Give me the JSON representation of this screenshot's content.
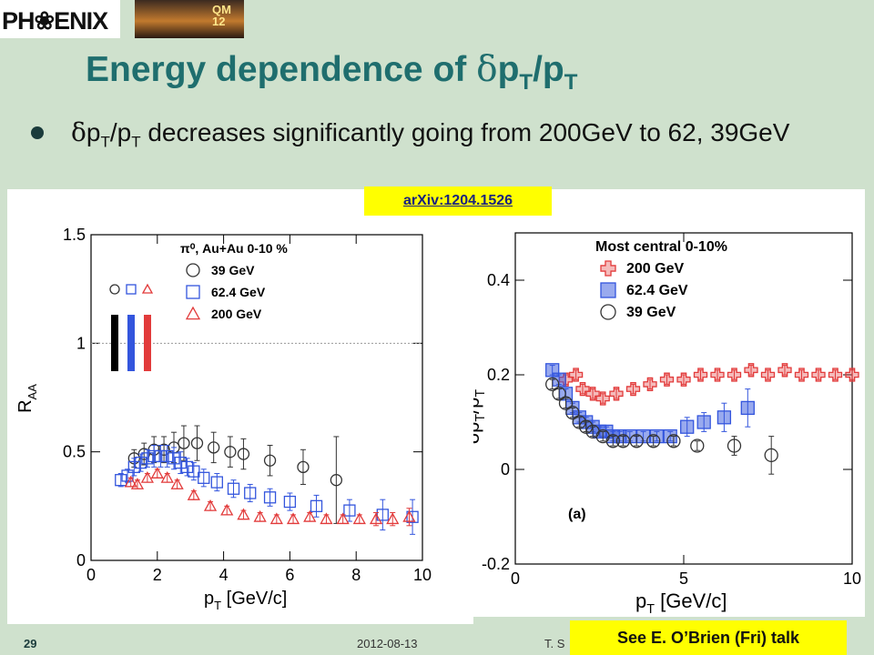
{
  "header": {
    "logo_text": "PH❀ENIX",
    "conference_badge": [
      "QM",
      "12"
    ]
  },
  "slide": {
    "title_pre": "Energy dependence of ",
    "title_delta": "δ",
    "title_p": "p",
    "title_sub1": "T",
    "title_slash": "/p",
    "title_sub2": "T",
    "bullet_delta": "δ",
    "bullet_p": "p",
    "bullet_sub1": "T",
    "bullet_slash": "/p",
    "bullet_sub2": "T",
    "bullet_rest": " decreases significantly going from 200GeV to 62, 39GeV"
  },
  "arxiv_label": "arXiv:1204.1526",
  "talk_label": "See E. O’Brien (Fri) talk",
  "footer": {
    "page": "29",
    "date": "2012-08-13",
    "author": "T. S"
  },
  "colors": {
    "c39": "#333333",
    "c62": "#3355dd",
    "c200": "#e23b3b",
    "ref_line": "#999999"
  },
  "chart_data": [
    {
      "type": "scatter",
      "ylabel": "R",
      "ylabel_sub": "AA",
      "xlabel": "p",
      "xlabel_sub": "T",
      "xlabel_rest": " [GeV/c]",
      "xlim": [
        0,
        10
      ],
      "ylim": [
        0,
        1.5
      ],
      "xticks": [
        "0",
        "2",
        "4",
        "6",
        "8",
        "10"
      ],
      "yticks": [
        "0",
        "0.5",
        "1",
        "1.5"
      ],
      "legend_title": "π⁰, Au+Au 0-10 %",
      "reference_line": 1.0,
      "series": [
        {
          "name": "39 GeV",
          "marker": "circle",
          "color": "#333333",
          "x": [
            1.3,
            1.6,
            1.9,
            2.2,
            2.5,
            2.8,
            3.2,
            3.7,
            4.2,
            4.6,
            5.4,
            6.4,
            7.4
          ],
          "y": [
            0.47,
            0.49,
            0.51,
            0.51,
            0.52,
            0.54,
            0.54,
            0.52,
            0.5,
            0.49,
            0.46,
            0.43,
            0.37
          ],
          "err": [
            0.04,
            0.05,
            0.06,
            0.06,
            0.07,
            0.08,
            0.08,
            0.07,
            0.07,
            0.07,
            0.07,
            0.08,
            0.2
          ]
        },
        {
          "name": "62.4 GeV",
          "marker": "square",
          "color": "#3355dd",
          "x": [
            0.9,
            1.1,
            1.3,
            1.5,
            1.7,
            1.9,
            2.1,
            2.3,
            2.5,
            2.7,
            2.9,
            3.1,
            3.4,
            3.8,
            4.3,
            4.8,
            5.4,
            6.0,
            6.8,
            7.8,
            8.8,
            9.7
          ],
          "y": [
            0.37,
            0.39,
            0.43,
            0.45,
            0.47,
            0.48,
            0.48,
            0.48,
            0.47,
            0.45,
            0.43,
            0.41,
            0.38,
            0.36,
            0.33,
            0.31,
            0.29,
            0.27,
            0.25,
            0.23,
            0.21,
            0.2
          ],
          "err": [
            0.03,
            0.03,
            0.04,
            0.04,
            0.04,
            0.05,
            0.05,
            0.05,
            0.05,
            0.05,
            0.04,
            0.04,
            0.04,
            0.04,
            0.04,
            0.04,
            0.04,
            0.04,
            0.05,
            0.05,
            0.07,
            0.08
          ]
        },
        {
          "name": "200 GeV",
          "marker": "triangle",
          "color": "#e23b3b",
          "x": [
            1.2,
            1.4,
            1.7,
            2.0,
            2.3,
            2.6,
            3.1,
            3.6,
            4.1,
            4.6,
            5.1,
            5.6,
            6.1,
            6.6,
            7.1,
            7.6,
            8.1,
            8.6,
            9.1,
            9.6
          ],
          "y": [
            0.36,
            0.35,
            0.38,
            0.4,
            0.38,
            0.35,
            0.3,
            0.25,
            0.23,
            0.21,
            0.2,
            0.19,
            0.19,
            0.2,
            0.19,
            0.19,
            0.19,
            0.19,
            0.19,
            0.2
          ],
          "err": [
            0.02,
            0.02,
            0.02,
            0.02,
            0.02,
            0.02,
            0.02,
            0.02,
            0.02,
            0.02,
            0.02,
            0.02,
            0.02,
            0.02,
            0.02,
            0.02,
            0.02,
            0.03,
            0.03,
            0.04
          ]
        }
      ]
    },
    {
      "type": "scatter",
      "ylabel": "δp",
      "ylabel_sub1": "T",
      "ylabel_mid": "/p",
      "ylabel_sub2": "T",
      "xlabel": "p",
      "xlabel_sub": "T",
      "xlabel_rest": " [GeV/c]",
      "xlim": [
        0,
        10
      ],
      "ylim": [
        -0.2,
        0.5
      ],
      "xticks": [
        "0",
        "5",
        "10"
      ],
      "yticks": [
        "-0.2",
        "0",
        "0.2",
        "0.4"
      ],
      "legend_title": "Most central 0-10%",
      "annotation": "(a)",
      "series": [
        {
          "name": "200 GeV",
          "marker": "cross",
          "color": "#e23b3b",
          "x": [
            1.5,
            1.8,
            2.0,
            2.3,
            2.6,
            3.0,
            3.5,
            4.0,
            4.5,
            5.0,
            5.5,
            6.0,
            6.5,
            7.0,
            7.5,
            8.0,
            8.5,
            9.0,
            9.5,
            10.0
          ],
          "y": [
            0.19,
            0.2,
            0.17,
            0.16,
            0.15,
            0.16,
            0.17,
            0.18,
            0.19,
            0.19,
            0.2,
            0.2,
            0.2,
            0.21,
            0.2,
            0.21,
            0.2,
            0.2,
            0.2,
            0.2
          ],
          "err": [
            0.01,
            0.01,
            0.01,
            0.01,
            0.01,
            0.01,
            0.01,
            0.01,
            0.01,
            0.01,
            0.01,
            0.01,
            0.01,
            0.01,
            0.01,
            0.01,
            0.01,
            0.01,
            0.01,
            0.01
          ]
        },
        {
          "name": "62.4 GeV",
          "marker": "square",
          "color": "#3355dd",
          "x": [
            1.1,
            1.3,
            1.5,
            1.7,
            1.9,
            2.1,
            2.3,
            2.5,
            2.7,
            2.9,
            3.1,
            3.4,
            3.8,
            4.2,
            4.6,
            5.1,
            5.6,
            6.2,
            6.9
          ],
          "y": [
            0.21,
            0.19,
            0.16,
            0.13,
            0.11,
            0.1,
            0.09,
            0.08,
            0.08,
            0.07,
            0.07,
            0.07,
            0.07,
            0.07,
            0.07,
            0.09,
            0.1,
            0.11,
            0.13
          ],
          "err": [
            0.01,
            0.01,
            0.01,
            0.01,
            0.01,
            0.01,
            0.01,
            0.01,
            0.01,
            0.01,
            0.01,
            0.01,
            0.01,
            0.01,
            0.01,
            0.02,
            0.02,
            0.03,
            0.04
          ]
        },
        {
          "name": "39 GeV",
          "marker": "circle",
          "color": "#333333",
          "x": [
            1.1,
            1.3,
            1.5,
            1.7,
            1.9,
            2.1,
            2.3,
            2.6,
            2.9,
            3.2,
            3.6,
            4.1,
            4.7,
            5.4,
            6.5,
            7.6
          ],
          "y": [
            0.18,
            0.16,
            0.14,
            0.12,
            0.1,
            0.09,
            0.08,
            0.07,
            0.06,
            0.06,
            0.06,
            0.06,
            0.06,
            0.05,
            0.05,
            0.03
          ],
          "err": [
            0.01,
            0.01,
            0.01,
            0.01,
            0.01,
            0.01,
            0.01,
            0.01,
            0.01,
            0.01,
            0.01,
            0.01,
            0.01,
            0.01,
            0.02,
            0.04
          ]
        }
      ]
    }
  ]
}
